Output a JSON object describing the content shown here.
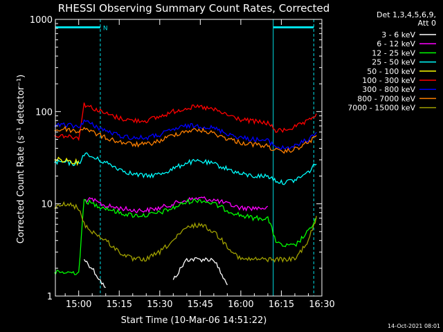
{
  "chart_data": {
    "type": "line",
    "title": "RHESSI Observing Summary Count Rates, Corrected",
    "xlabel": "Start Time (10-Mar-06 14:51:22)",
    "ylabel": "Corrected Count Rate (s⁻¹ detector⁻¹)",
    "xlim": [
      "14:51:22",
      "16:30:00"
    ],
    "ylim": [
      1,
      1000
    ],
    "y_scale": "log",
    "x_ticks": [
      "15:00",
      "15:15",
      "15:30",
      "15:45",
      "16:00",
      "16:15",
      "16:30"
    ],
    "y_ticks": [
      "1",
      "10",
      "100",
      "1000"
    ],
    "detectors_label": "Det 1,3,4,5,6,9,",
    "attenuator_label": "Att 0",
    "timestamp": "14-Oct-2021 08:01",
    "annotations": [
      {
        "text": "N",
        "color": "#00e0e8"
      }
    ],
    "markers": {
      "color": "#00e0e8",
      "solid_lines": [
        "14:51:22",
        "16:12:00"
      ],
      "dashed_lines": [
        "15:08:00",
        "16:27:00"
      ],
      "bars": [
        {
          "from": "14:51:22",
          "to": "15:08:00",
          "level": 820
        },
        {
          "from": "16:12:00",
          "to": "16:27:00",
          "level": 820
        }
      ]
    },
    "x": [
      "14:51",
      "14:55",
      "15:00",
      "15:02",
      "15:05",
      "15:10",
      "15:15",
      "15:20",
      "15:25",
      "15:30",
      "15:35",
      "15:40",
      "15:45",
      "15:50",
      "15:55",
      "16:00",
      "16:05",
      "16:10",
      "16:13",
      "16:15",
      "16:20",
      "16:25",
      "16:28"
    ],
    "series": [
      {
        "name": "3 - 6 keV",
        "color": "#ffffff",
        "values": [
          null,
          null,
          null,
          2.5,
          2,
          1.2,
          null,
          null,
          null,
          null,
          1.5,
          2.5,
          2.5,
          2.5,
          1.3,
          null,
          null,
          null,
          null,
          null,
          null,
          null,
          null
        ]
      },
      {
        "name": "6 - 12 keV",
        "color": "#ff00ff",
        "values": [
          null,
          null,
          null,
          11,
          11,
          9.5,
          9,
          8.5,
          8.5,
          9,
          10,
          11,
          11.5,
          11,
          10,
          9,
          9,
          9,
          null,
          null,
          null,
          null,
          null
        ]
      },
      {
        "name": "12 - 25 keV",
        "color": "#00ff00",
        "values": [
          1.8,
          1.8,
          1.8,
          11,
          10,
          9,
          8,
          7.5,
          7.5,
          8,
          9,
          10.5,
          11,
          10,
          8.5,
          7.5,
          7,
          7,
          4,
          3.5,
          3.5,
          5,
          7
        ]
      },
      {
        "name": "25 - 50 keV",
        "color": "#00ffff",
        "values": [
          28,
          28,
          27,
          35,
          32,
          28,
          24,
          21,
          20,
          21,
          24,
          28,
          29,
          27,
          24,
          21,
          20,
          20,
          18,
          17,
          18,
          22,
          28
        ]
      },
      {
        "name": "50 - 100 keV",
        "color": "#ffff00",
        "values": [
          30,
          30,
          28,
          null,
          null,
          null,
          null,
          null,
          null,
          null,
          null,
          null,
          null,
          null,
          null,
          null,
          null,
          null,
          null,
          null,
          null,
          null,
          43
        ]
      },
      {
        "name": "100 - 300 keV",
        "color": "#ff0000",
        "values": [
          55,
          55,
          52,
          120,
          110,
          95,
          85,
          80,
          80,
          88,
          100,
          110,
          112,
          105,
          92,
          82,
          78,
          75,
          62,
          62,
          68,
          78,
          95
        ]
      },
      {
        "name": "300 - 800 keV",
        "color": "#0000ff",
        "values": [
          70,
          72,
          68,
          80,
          72,
          62,
          55,
          52,
          52,
          56,
          64,
          70,
          70,
          66,
          58,
          52,
          50,
          48,
          42,
          40,
          42,
          50,
          60
        ]
      },
      {
        "name": "800 - 7000 keV",
        "color": "#ff8000",
        "values": [
          62,
          65,
          60,
          68,
          60,
          52,
          47,
          44,
          44,
          48,
          56,
          62,
          63,
          58,
          51,
          46,
          44,
          42,
          38,
          36,
          39,
          46,
          55
        ]
      },
      {
        "name": "7000 - 15000 keV",
        "color": "#a0a000",
        "values": [
          9,
          10,
          9,
          6,
          5,
          4,
          3,
          2.5,
          2.5,
          3,
          4,
          5.5,
          6,
          5,
          3.5,
          2.5,
          2.5,
          2.5,
          2.5,
          2.5,
          2.5,
          4,
          7
        ]
      }
    ]
  }
}
